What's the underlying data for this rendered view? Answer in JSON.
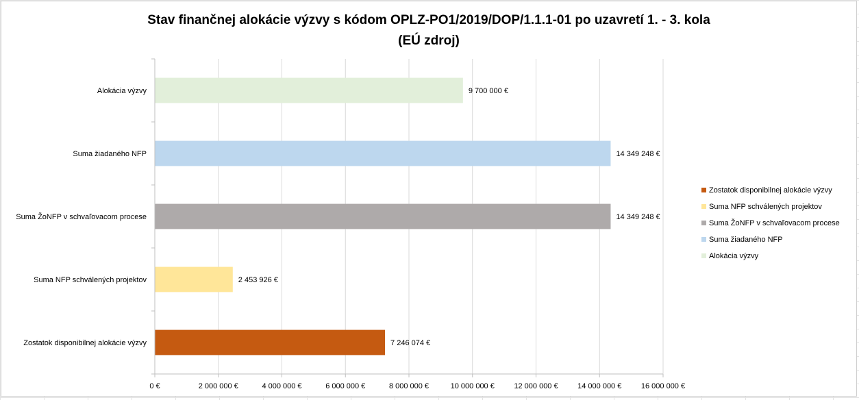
{
  "chart_data": {
    "type": "bar",
    "orientation": "horizontal",
    "title": "Stav finančnej alokácie výzvy s kódom OPLZ-PO1/2019/DOP/1.1.1-01 po uzavretí 1. - 3. kola",
    "subtitle": "(EÚ zdroj)",
    "xlabel": "",
    "ylabel": "",
    "xlim": [
      0,
      16000000
    ],
    "grid": true,
    "legend_position": "right",
    "x_ticks": [
      {
        "value": 0,
        "label": "0 €"
      },
      {
        "value": 2000000,
        "label": "2 000 000 €"
      },
      {
        "value": 4000000,
        "label": "4 000 000 €"
      },
      {
        "value": 6000000,
        "label": "6 000 000 €"
      },
      {
        "value": 8000000,
        "label": "8 000 000 €"
      },
      {
        "value": 10000000,
        "label": "10 000 000 €"
      },
      {
        "value": 12000000,
        "label": "12 000 000 €"
      },
      {
        "value": 14000000,
        "label": "14 000 000 €"
      },
      {
        "value": 16000000,
        "label": "16 000 000 €"
      }
    ],
    "bars": [
      {
        "category": "Alokácia výzvy",
        "value": 9700000,
        "label": "9 700 000 €",
        "color": "#e2efda"
      },
      {
        "category": "Suma žiadaného NFP",
        "value": 14349248,
        "label": "14 349 248 €",
        "color": "#bdd7ee"
      },
      {
        "category": "Suma ŽoNFP v schvaľovacom procese",
        "value": 14349248,
        "label": "14 349 248 €",
        "color": "#aeaaaa"
      },
      {
        "category": "Suma NFP schválených projektov",
        "value": 2453926,
        "label": "2 453 926 €",
        "color": "#ffe699"
      },
      {
        "category": "Zostatok disponibilnej alokácie výzvy",
        "value": 7246074,
        "label": "7 246 074 €",
        "color": "#c55a11"
      }
    ],
    "legend": [
      {
        "label": "Zostatok disponibilnej alokácie výzvy",
        "color": "#c55a11"
      },
      {
        "label": "Suma NFP schválených projektov",
        "color": "#ffe699"
      },
      {
        "label": "Suma ŽoNFP v schvaľovacom procese",
        "color": "#aeaaaa"
      },
      {
        "label": "Suma žiadaného NFP",
        "color": "#bdd7ee"
      },
      {
        "label": "Alokácia výzvy",
        "color": "#e2efda"
      }
    ]
  }
}
